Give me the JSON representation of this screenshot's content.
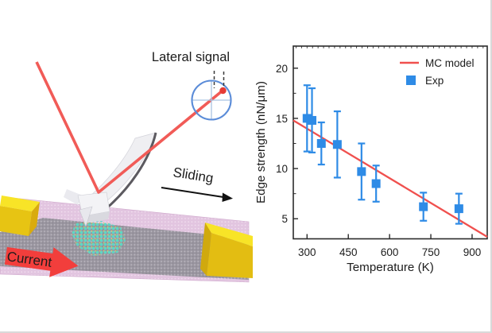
{
  "schematic": {
    "lateral_signal_label": "Lateral signal",
    "sliding_label": "Sliding",
    "current_label": "Current",
    "colors": {
      "laser_beam": "#f15b57",
      "laser_spot": "#e63b35",
      "detector_ring": "#5b8cd8",
      "detector_crosshair": "#a9c3e2",
      "cantilever_body": "#efeff2",
      "cantilever_edge": "#5c5a60",
      "substrate_pink": "#e2c5e0",
      "channel_gray": "#9a96a0",
      "electrode_yellow": "#f8e427",
      "island_teal": "#5ed7c3",
      "current_arrow_red": "#f23e3c"
    }
  },
  "chart_data": {
    "type": "scatter",
    "title": "",
    "xlabel": "Temperature (K)",
    "ylabel": "Edge strength (nN/μm)",
    "xlim": [
      250,
      955
    ],
    "ylim": [
      3,
      22.2
    ],
    "x_ticks": [
      300,
      450,
      600,
      750,
      900
    ],
    "y_ticks": [
      5,
      10,
      15,
      20
    ],
    "y_minor_ticks": [
      7.5,
      12.5,
      17.5
    ],
    "top_minor_tick_step": 20,
    "grid": false,
    "legend_position": "top-right",
    "legend": [
      {
        "label": "MC model",
        "marker": "line",
        "color": "#f0504e"
      },
      {
        "label": "Exp",
        "marker": "square",
        "color": "#2e8be6"
      }
    ],
    "series": [
      {
        "name": "MC model",
        "type": "line",
        "color": "#f0504e",
        "points": [
          {
            "x": 250,
            "y": 14.8
          },
          {
            "x": 955,
            "y": 3.2
          }
        ]
      },
      {
        "name": "Exp",
        "type": "scatter",
        "marker": "square",
        "color": "#2e8be6",
        "points": [
          {
            "x": 300,
            "y": 15.0,
            "yerr": 3.3
          },
          {
            "x": 318,
            "y": 14.8,
            "yerr": 3.2
          },
          {
            "x": 352,
            "y": 12.5,
            "yerr": 2.1
          },
          {
            "x": 410,
            "y": 12.4,
            "yerr": 3.3
          },
          {
            "x": 498,
            "y": 9.7,
            "yerr": 2.8
          },
          {
            "x": 551,
            "y": 8.5,
            "yerr": 1.8
          },
          {
            "x": 723,
            "y": 6.2,
            "yerr": 1.4
          },
          {
            "x": 852,
            "y": 6.0,
            "yerr": 1.5
          }
        ]
      }
    ]
  }
}
